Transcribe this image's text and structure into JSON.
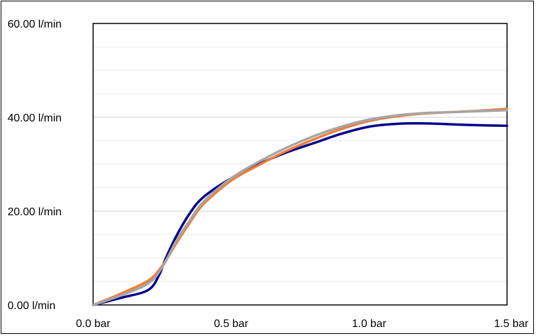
{
  "chart_data": {
    "type": "line",
    "title": "",
    "xlabel": "",
    "ylabel": "",
    "xlim": [
      0,
      1.5
    ],
    "ylim": [
      0,
      60
    ],
    "grid": true,
    "legend": "none",
    "x_ticks": [
      {
        "value": 0,
        "label": "0.0 bar"
      },
      {
        "value": 0.5,
        "label": "0.5 bar"
      },
      {
        "value": 1.0,
        "label": "1.0 bar"
      },
      {
        "value": 1.5,
        "label": "1.5 bar"
      }
    ],
    "y_ticks": [
      {
        "value": 0,
        "label": "0.00 l/min"
      },
      {
        "value": 20,
        "label": "20.00 l/min"
      },
      {
        "value": 40,
        "label": "40.00 l/min"
      },
      {
        "value": 60,
        "label": "60.00 l/min"
      }
    ],
    "series": [
      {
        "color": "#00008b",
        "x": [
          0,
          0.1,
          0.2,
          0.24,
          0.26,
          0.3,
          0.35,
          0.4,
          0.5,
          0.6,
          0.7,
          0.8,
          0.9,
          1.0,
          1.1,
          1.2,
          1.3,
          1.4,
          1.5
        ],
        "y": [
          0,
          1.5,
          3.2,
          6.5,
          9.5,
          14.5,
          19.5,
          23,
          27,
          30,
          32.5,
          34.5,
          36.5,
          38,
          38.6,
          38.7,
          38.5,
          38.3,
          38.2
        ]
      },
      {
        "color": "#f07c35",
        "x": [
          0,
          0.1,
          0.2,
          0.25,
          0.3,
          0.35,
          0.4,
          0.5,
          0.6,
          0.7,
          0.8,
          0.9,
          1.0,
          1.1,
          1.2,
          1.3,
          1.4,
          1.5
        ],
        "y": [
          0,
          2.4,
          5.2,
          8.3,
          13,
          17.5,
          21.5,
          26.5,
          29.8,
          32.8,
          35.3,
          37.5,
          39.2,
          40.2,
          40.8,
          41.1,
          41.4,
          41.8
        ]
      },
      {
        "color": "#a5a5a5",
        "x": [
          0,
          0.1,
          0.2,
          0.25,
          0.3,
          0.35,
          0.4,
          0.5,
          0.6,
          0.7,
          0.8,
          0.9,
          1.0,
          1.1,
          1.2,
          1.3,
          1.4,
          1.5
        ],
        "y": [
          0,
          2.0,
          4.6,
          8.0,
          13.5,
          18,
          22,
          27,
          30.5,
          33.5,
          36,
          38,
          39.5,
          40.4,
          40.9,
          41.1,
          41.3,
          41.5
        ]
      }
    ]
  }
}
